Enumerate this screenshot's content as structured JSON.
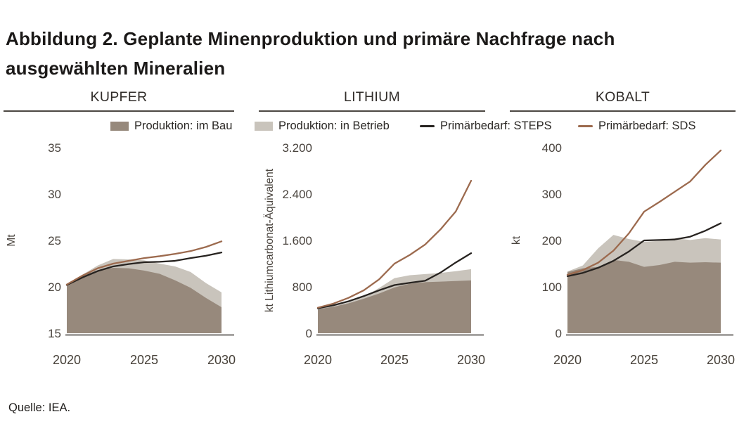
{
  "title": {
    "line1": "Abbildung 2. Geplante Minenproduktion und primäre Nachfrage nach",
    "line2": "ausgewählten Mineralien"
  },
  "source": "Quelle: IEA.",
  "colors": {
    "area_dark": "#97897c",
    "area_light": "#c9c4bc",
    "line_steps": "#272320",
    "line_sds": "#9c6a4e",
    "axis": "#3c3833",
    "rule": "#4c4742"
  },
  "legend": {
    "items": [
      {
        "label": "Produktion: im Bau",
        "swatch": "area",
        "color": "#97897c"
      },
      {
        "label": "Produktion: in Betrieb",
        "swatch": "area",
        "color": "#c9c4bc"
      },
      {
        "label": "Primärbedarf: STEPS",
        "swatch": "line",
        "color": "#272320"
      },
      {
        "label": "Primärbedarf: SDS",
        "swatch": "line",
        "color": "#9c6a4e"
      }
    ]
  },
  "chart_data": [
    {
      "type": "area",
      "title": "KUPFER",
      "ylabel": "Mt",
      "ylim": [
        15,
        35
      ],
      "yticks": [
        15,
        20,
        25,
        30,
        35
      ],
      "ytick_labels": [
        "15",
        "20",
        "25",
        "30",
        "35"
      ],
      "xticks": [
        2020,
        2025,
        2030
      ],
      "x": [
        2020,
        2021,
        2022,
        2023,
        2024,
        2025,
        2026,
        2027,
        2028,
        2029,
        2030
      ],
      "grid": false,
      "series": [
        {
          "name": "Produktion: in Betrieb",
          "type": "area",
          "color": "#c9c4bc",
          "values": [
            20.15,
            21.3,
            22.3,
            23.0,
            22.95,
            22.85,
            22.5,
            22.2,
            21.6,
            20.4,
            19.4
          ]
        },
        {
          "name": "Produktion: im Bau",
          "type": "area",
          "color": "#97897c",
          "values": [
            20.1,
            21.2,
            21.8,
            22.05,
            22.0,
            21.75,
            21.4,
            20.7,
            19.9,
            18.8,
            17.8
          ]
        },
        {
          "name": "Primärbedarf: STEPS",
          "type": "line",
          "color": "#272320",
          "values": [
            20.2,
            21.0,
            21.7,
            22.2,
            22.45,
            22.65,
            22.7,
            22.8,
            23.1,
            23.35,
            23.7
          ]
        },
        {
          "name": "Primärbedarf: SDS",
          "type": "line",
          "color": "#9c6a4e",
          "values": [
            20.25,
            21.2,
            22.0,
            22.5,
            22.8,
            23.1,
            23.3,
            23.55,
            23.85,
            24.3,
            24.9
          ]
        }
      ]
    },
    {
      "type": "area",
      "title": "LITHIUM",
      "ylabel": "kt Lithiumcarbonat-Äquivalent",
      "ylim": [
        0,
        3200
      ],
      "yticks": [
        0,
        800,
        1600,
        2400,
        3200
      ],
      "ytick_labels": [
        "0",
        "800",
        "1.600",
        "2.400",
        "3.200"
      ],
      "xticks": [
        2020,
        2025,
        2030
      ],
      "x": [
        2020,
        2021,
        2022,
        2023,
        2024,
        2025,
        2026,
        2027,
        2028,
        2029,
        2030
      ],
      "grid": false,
      "series": [
        {
          "name": "Produktion: in Betrieb",
          "type": "area",
          "color": "#c9c4bc",
          "values": [
            420,
            465,
            530,
            630,
            780,
            950,
            1000,
            1020,
            1040,
            1070,
            1105
          ]
        },
        {
          "name": "Produktion: im Bau",
          "type": "area",
          "color": "#97897c",
          "values": [
            415,
            455,
            515,
            595,
            685,
            790,
            855,
            880,
            890,
            900,
            910
          ]
        },
        {
          "name": "Primärbedarf: STEPS",
          "type": "line",
          "color": "#272320",
          "values": [
            430,
            480,
            550,
            640,
            740,
            830,
            870,
            905,
            1045,
            1220,
            1380
          ]
        },
        {
          "name": "Primärbedarf: SDS",
          "type": "line",
          "color": "#9c6a4e",
          "values": [
            440,
            510,
            610,
            740,
            930,
            1200,
            1350,
            1530,
            1790,
            2100,
            2630
          ]
        }
      ]
    },
    {
      "type": "area",
      "title": "KOBALT",
      "ylabel": "kt",
      "ylim": [
        0,
        400
      ],
      "yticks": [
        0,
        100,
        200,
        300,
        400
      ],
      "ytick_labels": [
        "0",
        "100",
        "200",
        "300",
        "400"
      ],
      "xticks": [
        2020,
        2025,
        2030
      ],
      "x": [
        2020,
        2021,
        2022,
        2023,
        2024,
        2025,
        2026,
        2027,
        2028,
        2029,
        2030
      ],
      "grid": false,
      "series": [
        {
          "name": "Produktion: in Betrieb",
          "type": "area",
          "color": "#c9c4bc",
          "values": [
            133,
            146,
            183,
            212,
            203,
            197,
            199,
            205,
            201,
            205,
            202
          ]
        },
        {
          "name": "Produktion: im Bau",
          "type": "area",
          "color": "#97897c",
          "values": [
            132,
            140,
            143,
            158,
            154,
            143,
            147,
            154,
            152,
            153,
            152
          ]
        },
        {
          "name": "Primärbedarf: STEPS",
          "type": "line",
          "color": "#272320",
          "values": [
            123,
            130,
            141,
            156,
            176,
            200,
            201,
            202,
            208,
            221,
            237
          ]
        },
        {
          "name": "Primärbedarf: SDS",
          "type": "line",
          "color": "#9c6a4e",
          "values": [
            126,
            136,
            152,
            178,
            215,
            262,
            283,
            305,
            327,
            363,
            394
          ]
        }
      ]
    }
  ]
}
